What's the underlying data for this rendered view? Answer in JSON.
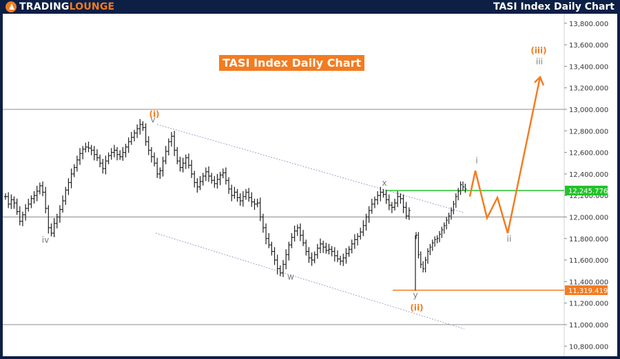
{
  "header": {
    "logo_brand": "TradingLounge",
    "logo_text_part1": "TRADING",
    "logo_text_part2": "LOUNGE",
    "title": "TASI Index Daily Chart"
  },
  "chart_data": {
    "type": "line",
    "title": "TASI Index Daily Chart",
    "subtitle": "",
    "xlabel": "",
    "ylabel": "",
    "ylim": [
      10700,
      13900
    ],
    "y_ticks": [
      13800,
      13600,
      13400,
      13200,
      13000,
      12800,
      12600,
      12400,
      12200,
      12000,
      11800,
      11600,
      11400,
      11200,
      11000,
      10800
    ],
    "y_tick_labels": [
      "13,800.000",
      "13,600.000",
      "13,400.000",
      "13,200.000",
      "13,000.000",
      "12,800.000",
      "12,600.000",
      "12,400.000",
      "12,200.000",
      "12,000.000",
      "11,800.000",
      "11,600.000",
      "11,400.000",
      "11,200.000",
      "11,000.000",
      "10,800.000"
    ],
    "price_markers": [
      {
        "label": "12,245.776",
        "value": 12245.776,
        "color": "#22c32a"
      },
      {
        "label": "11,319.419",
        "value": 11319.419,
        "color": "#f47b20"
      }
    ],
    "horizontal_levels": [
      13000,
      12000,
      11000
    ],
    "price_series": {
      "name": "",
      "close": [
        12190,
        12120,
        12160,
        12130,
        12050,
        11960,
        12020,
        12080,
        12120,
        12170,
        12200,
        12240,
        12290,
        12230,
        12080,
        11900,
        11850,
        11940,
        12000,
        12070,
        12150,
        12250,
        12320,
        12400,
        12460,
        12530,
        12590,
        12630,
        12650,
        12640,
        12620,
        12580,
        12550,
        12500,
        12450,
        12520,
        12570,
        12600,
        12620,
        12580,
        12560,
        12600,
        12650,
        12700,
        12740,
        12780,
        12820,
        12860,
        12830,
        12700,
        12620,
        12560,
        12500,
        12400,
        12430,
        12520,
        12610,
        12700,
        12750,
        12620,
        12520,
        12460,
        12500,
        12550,
        12480,
        12400,
        12320,
        12280,
        12330,
        12380,
        12420,
        12380,
        12340,
        12310,
        12350,
        12390,
        12410,
        12340,
        12260,
        12200,
        12230,
        12180,
        12150,
        12190,
        12230,
        12180,
        12140,
        12120,
        12130,
        12000,
        11900,
        11800,
        11740,
        11680,
        11600,
        11520,
        11480,
        11560,
        11650,
        11740,
        11810,
        11870,
        11900,
        11830,
        11760,
        11680,
        11620,
        11600,
        11650,
        11710,
        11750,
        11720,
        11690,
        11700,
        11680,
        11640,
        11610,
        11590,
        11620,
        11660,
        11700,
        11750,
        11790,
        11820,
        11860,
        11920,
        12000,
        12060,
        12120,
        12160,
        12200,
        12230,
        12210,
        12160,
        12110,
        12090,
        12130,
        12190,
        12170,
        12090,
        12010,
        12060
      ],
      "close_after_gap": [
        11830,
        11650,
        11560,
        11520,
        11600,
        11680,
        11720,
        11760,
        11790,
        11800,
        11840,
        11880,
        11920,
        11970,
        12010,
        12060,
        12120,
        12190,
        12240,
        12300,
        12280,
        12260
      ]
    },
    "projection_series": {
      "name": "",
      "color": "#f47b20",
      "values": [
        12190,
        12430,
        11990,
        12180,
        11850,
        13300
      ]
    },
    "channel_lines": [
      {
        "from": [
          0,
          12860
        ],
        "to": [
          100,
          12040
        ]
      },
      {
        "from": [
          0,
          11850
        ],
        "to": [
          100,
          10960
        ]
      }
    ],
    "wave_labels": [
      {
        "text": "(i)",
        "color": "#f47b20",
        "value": 12930
      },
      {
        "text": "v",
        "color": "#7a7a7a",
        "value": 12880
      },
      {
        "text": "iv",
        "color": "#7a7a7a",
        "value": 11760
      },
      {
        "text": "w",
        "color": "#7a7a7a",
        "value": 11420
      },
      {
        "text": "x",
        "color": "#7a7a7a",
        "value": 12290
      },
      {
        "text": "y",
        "color": "#7a7a7a",
        "value": 11250
      },
      {
        "text": "(ii)",
        "color": "#f47b20",
        "value": 11130
      },
      {
        "text": "i",
        "color": "#7a7a7a",
        "value": 12500
      },
      {
        "text": "ii",
        "color": "#7a7a7a",
        "value": 11770
      },
      {
        "text": "(iii)",
        "color": "#f47b20",
        "value": 13520
      },
      {
        "text": "iii",
        "color": "#7a7a7a",
        "value": 13420
      }
    ],
    "grid": false,
    "legend": "none"
  },
  "colors": {
    "frame": "#0d1f45",
    "background": "#ffffff",
    "accent": "#f47b20",
    "support_line": "#22c32a",
    "candles": "#1e1e1e",
    "channel": "#9aa0c8",
    "level_lines": "#8c8c8c"
  }
}
